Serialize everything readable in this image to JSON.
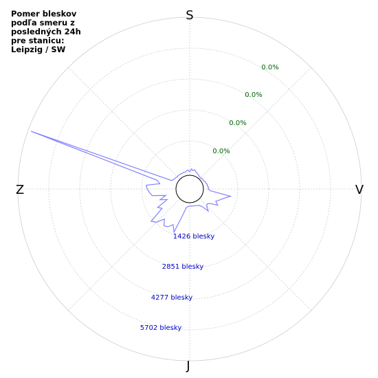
{
  "title": {
    "lines": [
      "Pomer bleskov",
      "podľa smeru z",
      "posledných 24h",
      "pre stanicu:",
      "Leipzig / SW"
    ]
  },
  "colors": {
    "rose_line": "#8080ff",
    "grid": "#cccccc",
    "percent_labels": "#006400",
    "count_labels": "#0000cc",
    "inner_circle": "#000000"
  },
  "chart_data": {
    "type": "polar-line",
    "directions": {
      "north_top": "S",
      "east_right": "V",
      "south_bottom": "J",
      "west_left": "Z"
    },
    "percent_labels": [
      "0.0%",
      "0.0%",
      "0.0%",
      "0.0%"
    ],
    "count_labels": [
      "1426 blesky",
      "2851 blesky",
      "4277 blesky",
      "5702 blesky"
    ],
    "radial_max": 7128,
    "grid": true,
    "series": [
      {
        "points": [
          {
            "angle": 0,
            "value": 150
          },
          {
            "angle": 5,
            "value": 290
          },
          {
            "angle": 10,
            "value": 220
          },
          {
            "angle": 15,
            "value": 280
          },
          {
            "angle": 20,
            "value": 200
          },
          {
            "angle": 25,
            "value": 170
          },
          {
            "angle": 30,
            "value": 140
          },
          {
            "angle": 35,
            "value": 110
          },
          {
            "angle": 40,
            "value": 90
          },
          {
            "angle": 45,
            "value": 80
          },
          {
            "angle": 50,
            "value": 110
          },
          {
            "angle": 55,
            "value": 120
          },
          {
            "angle": 60,
            "value": 110
          },
          {
            "angle": 65,
            "value": 160
          },
          {
            "angle": 70,
            "value": 150
          },
          {
            "angle": 75,
            "value": 200
          },
          {
            "angle": 80,
            "value": 180
          },
          {
            "angle": 85,
            "value": 240
          },
          {
            "angle": 90,
            "value": 210
          },
          {
            "angle": 95,
            "value": 320
          },
          {
            "angle": 100,
            "value": 1250
          },
          {
            "angle": 105,
            "value": 980
          },
          {
            "angle": 110,
            "value": 820
          },
          {
            "angle": 115,
            "value": 680
          },
          {
            "angle": 120,
            "value": 840
          },
          {
            "angle": 125,
            "value": 520
          },
          {
            "angle": 130,
            "value": 420
          },
          {
            "angle": 135,
            "value": 460
          },
          {
            "angle": 140,
            "value": 680
          },
          {
            "angle": 145,
            "value": 340
          },
          {
            "angle": 150,
            "value": 240
          },
          {
            "angle": 155,
            "value": 200
          },
          {
            "angle": 160,
            "value": 180
          },
          {
            "angle": 165,
            "value": 160
          },
          {
            "angle": 170,
            "value": 160
          },
          {
            "angle": 175,
            "value": 150
          },
          {
            "angle": 180,
            "value": 150
          },
          {
            "angle": 185,
            "value": 170
          },
          {
            "angle": 190,
            "value": 230
          },
          {
            "angle": 195,
            "value": 600
          },
          {
            "angle": 200,
            "value": 1450
          },
          {
            "angle": 205,
            "value": 1150
          },
          {
            "angle": 210,
            "value": 1350
          },
          {
            "angle": 215,
            "value": 1400
          },
          {
            "angle": 220,
            "value": 1150
          },
          {
            "angle": 225,
            "value": 1500
          },
          {
            "angle": 230,
            "value": 1650
          },
          {
            "angle": 235,
            "value": 900
          },
          {
            "angle": 240,
            "value": 1050
          },
          {
            "angle": 245,
            "value": 500
          },
          {
            "angle": 250,
            "value": 800
          },
          {
            "angle": 255,
            "value": 500
          },
          {
            "angle": 260,
            "value": 1100
          },
          {
            "angle": 265,
            "value": 1200
          },
          {
            "angle": 270,
            "value": 1300
          },
          {
            "angle": 275,
            "value": 1350
          },
          {
            "angle": 280,
            "value": 750
          },
          {
            "angle": 285,
            "value": 900
          },
          {
            "angle": 290,
            "value": 7000
          },
          {
            "angle": 295,
            "value": 300
          },
          {
            "angle": 300,
            "value": 220
          },
          {
            "angle": 305,
            "value": 200
          },
          {
            "angle": 310,
            "value": 190
          },
          {
            "angle": 315,
            "value": 170
          },
          {
            "angle": 320,
            "value": 180
          },
          {
            "angle": 325,
            "value": 170
          },
          {
            "angle": 330,
            "value": 170
          },
          {
            "angle": 335,
            "value": 160
          },
          {
            "angle": 340,
            "value": 180
          },
          {
            "angle": 345,
            "value": 160
          },
          {
            "angle": 350,
            "value": 210
          },
          {
            "angle": 355,
            "value": 240
          }
        ]
      }
    ]
  }
}
